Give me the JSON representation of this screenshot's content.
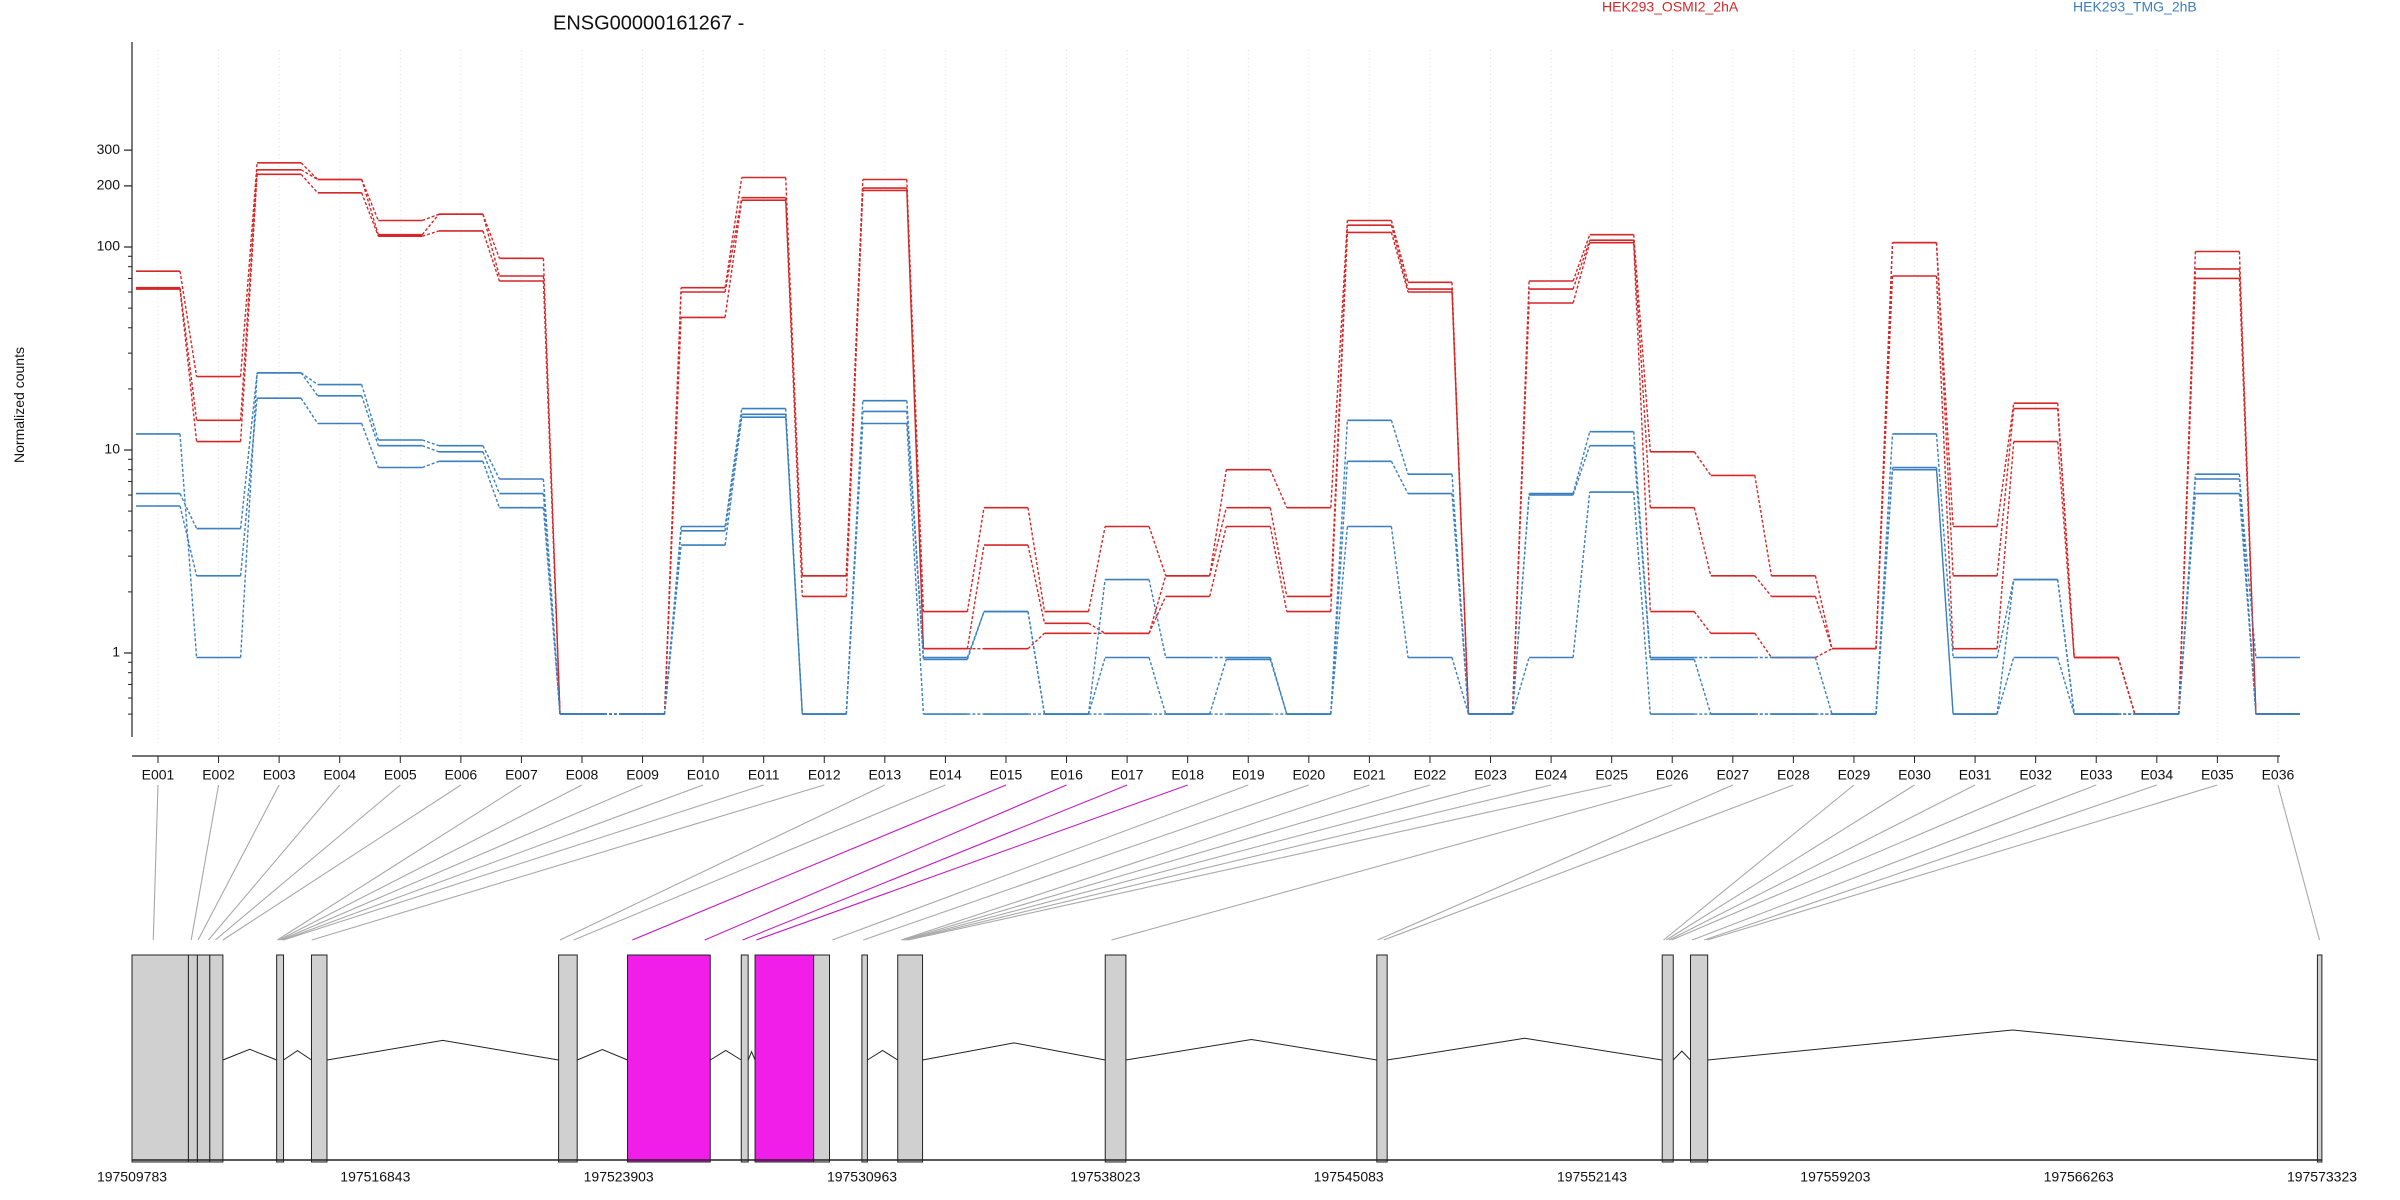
{
  "chart_data": {
    "type": "line",
    "title": "ENSG00000161267 -",
    "ylabel": "Normalized counts",
    "y_scale": "log",
    "y_ticks": [
      1,
      10,
      100,
      200,
      300
    ],
    "y_tick_labels": [
      "1",
      "10",
      "100",
      "200",
      "300"
    ],
    "ylim": [
      0.5,
      320
    ],
    "grid": "vertical dotted",
    "legend_placement": "top-right",
    "legend": [
      {
        "label": "HEK293_OSMI2_2hA",
        "color": "#d62728"
      },
      {
        "label": "HEK293_TMG_2hB",
        "color": "#3a7fbf"
      }
    ],
    "categories": [
      "E001",
      "E002",
      "E003",
      "E004",
      "E005",
      "E006",
      "E007",
      "E008",
      "E009",
      "E010",
      "E011",
      "E012",
      "E013",
      "E014",
      "E015",
      "E016",
      "E017",
      "E018",
      "E019",
      "E020",
      "E021",
      "E022",
      "E023",
      "E024",
      "E025",
      "E026",
      "E027",
      "E028",
      "E029",
      "E030",
      "E031",
      "E032",
      "E033",
      "E034",
      "E035",
      "E036"
    ],
    "series": [
      {
        "group": "HEK293_OSMI2_2hA",
        "color": "#d62728",
        "values": [
          76,
          23,
          260,
          215,
          135,
          145,
          88,
          0.5,
          0.5,
          63,
          220,
          2.4,
          215,
          1.6,
          5.2,
          1.6,
          4.2,
          2.4,
          8,
          5.2,
          135,
          67,
          0.5,
          68,
          115,
          9.8,
          7.5,
          2.4,
          1.05,
          105,
          4.2,
          17,
          0.95,
          0.5,
          95,
          0.5
        ]
      },
      {
        "group": "HEK293_OSMI2_2hA",
        "color": "#d62728",
        "values": [
          63,
          14,
          240,
          215,
          115,
          145,
          72,
          0.5,
          0.5,
          60,
          175,
          2.4,
          195,
          1.05,
          3.4,
          1.4,
          1.25,
          2.4,
          5.2,
          1.9,
          128,
          62,
          0.5,
          62,
          108,
          5.2,
          2.4,
          1.9,
          1.05,
          105,
          2.4,
          16,
          0.95,
          0.5,
          78,
          0.5
        ]
      },
      {
        "group": "HEK293_OSMI2_2hA",
        "color": "#d62728",
        "values": [
          62,
          11,
          228,
          185,
          113,
          120,
          68,
          0.5,
          0.5,
          45,
          170,
          1.9,
          190,
          1.05,
          1.05,
          1.25,
          1.25,
          1.9,
          4.2,
          1.6,
          118,
          60,
          0.5,
          53,
          105,
          1.6,
          1.25,
          0.95,
          1.05,
          72,
          1.05,
          11,
          0.95,
          0.5,
          70,
          0.5
        ]
      },
      {
        "group": "HEK293_TMG_2hB",
        "color": "#3a7fbf",
        "values": [
          12,
          0.95,
          24,
          21,
          11.2,
          10.5,
          7.2,
          0.5,
          0.5,
          4.2,
          16,
          0.5,
          17.5,
          0.95,
          1.6,
          0.5,
          2.3,
          0.95,
          0.95,
          0.5,
          14,
          7.6,
          0.5,
          6.1,
          12.3,
          0.95,
          0.95,
          0.95,
          0.5,
          12,
          0.95,
          2.3,
          0.5,
          0.5,
          7.6,
          0.5
        ]
      },
      {
        "group": "HEK293_TMG_2hB",
        "color": "#3a7fbf",
        "values": [
          6.1,
          4.1,
          24,
          18.5,
          10.5,
          9.8,
          6.1,
          0.5,
          0.5,
          4.0,
          15,
          0.5,
          15.5,
          0.93,
          1.6,
          0.5,
          0.95,
          0.5,
          0.93,
          0.5,
          8.8,
          6.1,
          0.5,
          6.0,
          10.5,
          0.93,
          0.5,
          0.5,
          0.5,
          8.2,
          0.5,
          2.3,
          0.5,
          0.5,
          7.2,
          0.95
        ]
      },
      {
        "group": "HEK293_TMG_2hB",
        "color": "#3a7fbf",
        "values": [
          5.3,
          2.4,
          18,
          13.5,
          8.2,
          8.8,
          5.2,
          0.5,
          0.5,
          3.4,
          14.5,
          0.5,
          13.5,
          0.5,
          0.5,
          0.5,
          0.5,
          0.5,
          0.5,
          0.5,
          4.2,
          0.95,
          0.5,
          0.95,
          6.2,
          0.5,
          0.5,
          0.5,
          0.5,
          8.0,
          0.5,
          0.95,
          0.5,
          0.5,
          6.1,
          0.5
        ]
      }
    ],
    "highlighted_exons": [
      "E015",
      "E016",
      "E017",
      "E018"
    ],
    "genomic_axis_labels": [
      "197509783",
      "197516843",
      "197523903",
      "197530963",
      "197538023",
      "197545083",
      "197552143",
      "197559203",
      "197566263",
      "197573323"
    ],
    "genomic_range": [
      197509783,
      197573323
    ],
    "colors": {
      "highlight_fill": "#f01ee8",
      "exon_fill": "#d0d0d0"
    }
  }
}
